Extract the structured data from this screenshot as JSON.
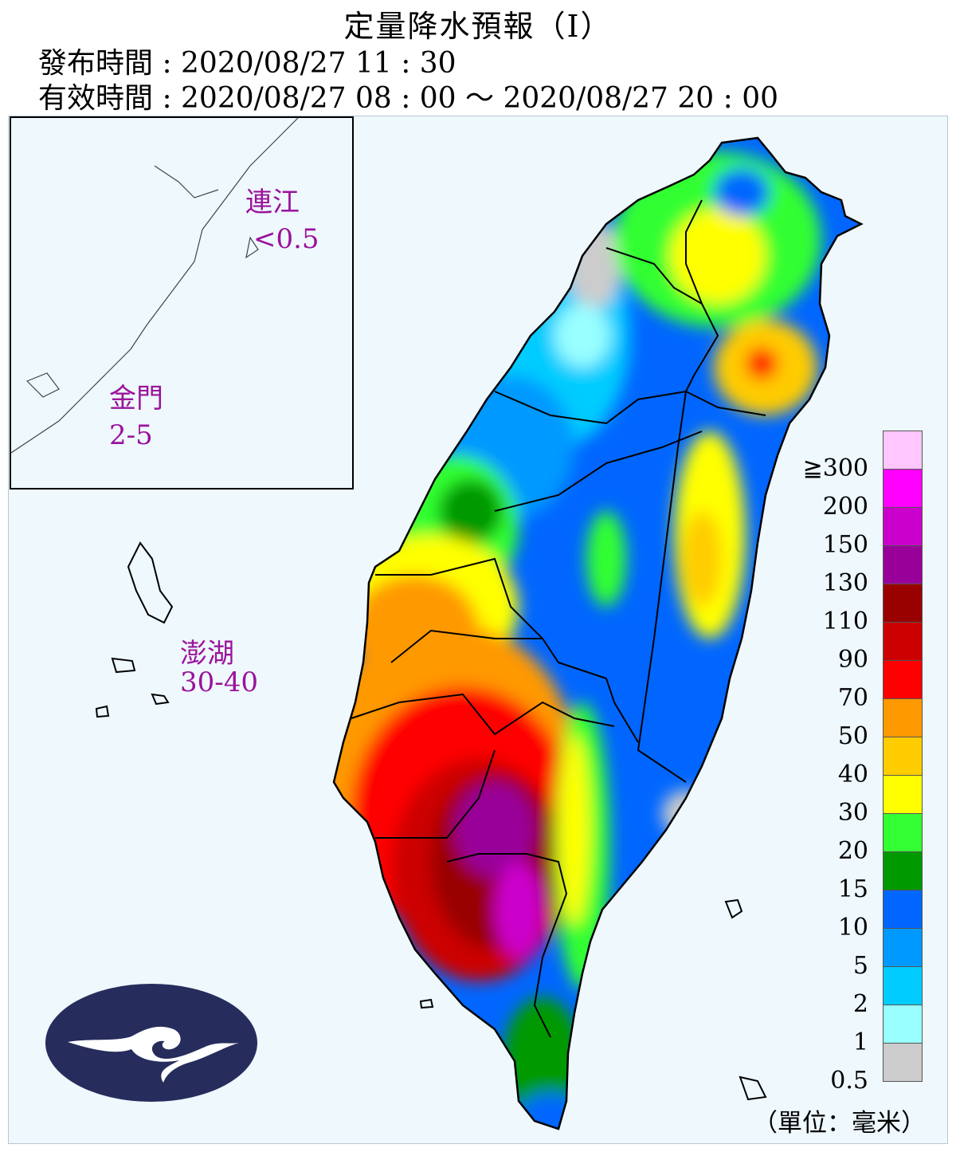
{
  "header": {
    "title": "定量降水預報（Ⅰ）",
    "issue_time": "發布時間 : 2020/08/27 11 : 30",
    "valid_time": "有效時間 : 2020/08/27 08 : 00 ～ 2020/08/27 20 : 00"
  },
  "offshore": [
    {
      "name": "連江",
      "value": "<0.5"
    },
    {
      "name": "金門",
      "value": "2-5"
    },
    {
      "name": "澎湖",
      "value": "30-40"
    }
  ],
  "legend": {
    "unit": "（單位：毫米）",
    "bins": [
      {
        "label": "≧300",
        "color": "#ffc6ff"
      },
      {
        "label": "200",
        "color": "#ff00ff"
      },
      {
        "label": "150",
        "color": "#cc00cc"
      },
      {
        "label": "130",
        "color": "#990099"
      },
      {
        "label": "110",
        "color": "#990000"
      },
      {
        "label": "90",
        "color": "#cc0000"
      },
      {
        "label": "70",
        "color": "#ff0000"
      },
      {
        "label": "50",
        "color": "#ff9900"
      },
      {
        "label": "40",
        "color": "#ffcc00"
      },
      {
        "label": "30",
        "color": "#ffff00"
      },
      {
        "label": "20",
        "color": "#33ff33"
      },
      {
        "label": "15",
        "color": "#009900"
      },
      {
        "label": "10",
        "color": "#0066ff"
      },
      {
        "label": "5",
        "color": "#0099ff"
      },
      {
        "label": "2",
        "color": "#00ccff"
      },
      {
        "label": "1",
        "color": "#99ffff"
      },
      {
        "label": "0.5",
        "color": "#cccccc"
      }
    ]
  },
  "colors": {
    "sea": "#eef8fd",
    "logo_ellipse": "#262d5c",
    "label_purple": "#9b139b"
  }
}
